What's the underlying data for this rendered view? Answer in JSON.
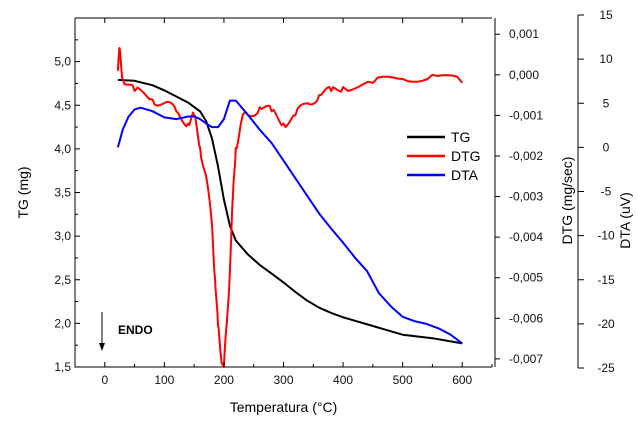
{
  "chart_data": {
    "type": "line",
    "x_axis": {
      "label": "Temperatura (°C)",
      "range": [
        -50,
        650
      ],
      "ticks": [
        0,
        100,
        200,
        300,
        400,
        500,
        600
      ],
      "tick_labels": [
        "0",
        "100",
        "200",
        "300",
        "400",
        "500",
        "600"
      ]
    },
    "y_axes": {
      "tg": {
        "label": "TG (mg)",
        "range": [
          1.5,
          5.5
        ],
        "ticks": [
          1.5,
          2.0,
          2.5,
          3.0,
          3.5,
          4.0,
          4.5,
          5.0
        ],
        "tick_labels": [
          "1,5",
          "2,0",
          "2,5",
          "3,0",
          "3,5",
          "4,0",
          "4,5",
          "5,0"
        ]
      },
      "dtg": {
        "label": "DTG (mg/sec)",
        "range": [
          -0.0072,
          0.0014
        ],
        "ticks": [
          0.001,
          0,
          -0.001,
          -0.002,
          -0.003,
          -0.004,
          -0.005,
          -0.006,
          -0.007
        ],
        "tick_labels": [
          "0,001",
          "0,000",
          "-0,001",
          "-0,002",
          "-0,003",
          "-0,004",
          "-0,005",
          "-0,006",
          "-0,007"
        ]
      },
      "dta": {
        "label": "DTA (uV)",
        "range": [
          -25,
          15
        ],
        "ticks": [
          15,
          10,
          5,
          0,
          -5,
          -10,
          -15,
          -20,
          -25
        ],
        "tick_labels": [
          "15",
          "10",
          "5",
          "0",
          "-5",
          "-10",
          "-15",
          "-20",
          "-25"
        ]
      }
    },
    "series": [
      {
        "name": "TG",
        "color": "#000000",
        "axis": "tg",
        "x": [
          22,
          50,
          80,
          100,
          120,
          140,
          160,
          170,
          180,
          190,
          200,
          210,
          220,
          240,
          260,
          280,
          300,
          320,
          340,
          360,
          380,
          400,
          450,
          500,
          550,
          600
        ],
        "y": [
          4.79,
          4.78,
          4.73,
          4.67,
          4.6,
          4.53,
          4.43,
          4.32,
          4.12,
          3.8,
          3.42,
          3.12,
          2.95,
          2.79,
          2.67,
          2.57,
          2.47,
          2.36,
          2.26,
          2.18,
          2.12,
          2.07,
          1.97,
          1.87,
          1.83,
          1.77
        ]
      },
      {
        "name": "DTG",
        "color": "#ff0000",
        "axis": "dtg",
        "x": [
          22,
          25,
          30,
          50,
          80,
          100,
          120,
          140,
          150,
          160,
          170,
          180,
          185,
          190,
          195,
          200,
          205,
          210,
          215,
          220,
          230,
          240,
          260,
          280,
          300,
          320,
          340,
          360,
          380,
          400,
          450,
          500,
          550,
          600
        ],
        "y": [
          0.0001,
          0.00065,
          -0.0001,
          -0.0004,
          -0.0006,
          -0.0007,
          -0.0009,
          -0.0012,
          -0.001,
          -0.0018,
          -0.0025,
          -0.0037,
          -0.005,
          -0.0062,
          -0.0069,
          -0.0072,
          -0.0061,
          -0.0048,
          -0.003,
          -0.0018,
          -0.0011,
          -0.001,
          -0.0008,
          -0.0009,
          -0.0012,
          -0.001,
          -0.0007,
          -0.0005,
          -0.0004,
          -0.0003,
          -0.0002,
          -0.0001,
          0.0,
          -0.0002
        ]
      },
      {
        "name": "DTA",
        "color": "#0000ff",
        "axis": "dta",
        "x": [
          22,
          30,
          40,
          50,
          60,
          80,
          100,
          120,
          140,
          150,
          160,
          170,
          180,
          190,
          200,
          210,
          220,
          240,
          260,
          280,
          300,
          320,
          340,
          360,
          380,
          400,
          420,
          440,
          460,
          480,
          500,
          520,
          540,
          560,
          580,
          600
        ],
        "y": [
          0.0,
          2.0,
          3.5,
          4.3,
          4.5,
          4.1,
          3.4,
          3.2,
          3.5,
          3.5,
          3.2,
          2.7,
          2.3,
          2.3,
          3.2,
          5.3,
          5.3,
          3.7,
          2.0,
          0.5,
          -1.5,
          -3.5,
          -5.5,
          -7.5,
          -9.2,
          -10.8,
          -12.5,
          -14.0,
          -16.5,
          -18.0,
          -19.2,
          -19.7,
          -20.0,
          -20.5,
          -21.2,
          -22.2
        ]
      }
    ],
    "legend": {
      "position": "center-right",
      "entries": [
        {
          "label": "TG",
          "color": "#000000"
        },
        {
          "label": "DTG",
          "color": "#ff0000"
        },
        {
          "label": "DTA",
          "color": "#0000ff"
        }
      ]
    },
    "annotations": [
      {
        "text": "ENDO",
        "arrow": "down"
      }
    ],
    "grid": false
  }
}
